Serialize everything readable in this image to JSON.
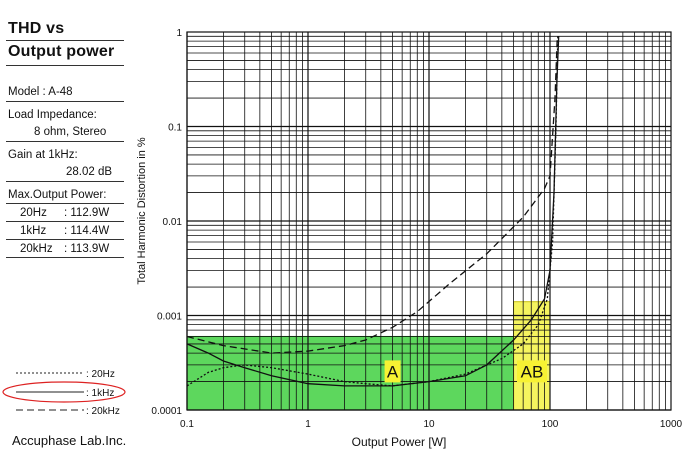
{
  "sidebar": {
    "title_line1": "THD vs",
    "title_line2": "Output power",
    "model": "Model    : A-48",
    "load_label": "Load Impedance:",
    "load_value": "8 ohm, Stereo",
    "gain_label": "Gain at 1kHz:",
    "gain_value": "28.02 dB",
    "maxpower_label": "Max.Output Power:",
    "power_rows": [
      {
        "freq": "20Hz",
        "value": ":  112.9W"
      },
      {
        "freq": "1kHz",
        "value": ":  114.4W"
      },
      {
        "freq": "20kHz",
        "value": ":  113.9W"
      }
    ],
    "brand": "Accuphase Lab.Inc."
  },
  "legend": [
    {
      "label": ": 20Hz",
      "style": "dotted"
    },
    {
      "label": ": 1kHz",
      "style": "solid",
      "highlighted": true
    },
    {
      "label": ": 20kHz",
      "style": "dashed"
    }
  ],
  "chart_data": {
    "type": "line",
    "xlabel": "Output Power [W]",
    "ylabel": "Total Harmonic Distortion in %",
    "xscale": "log",
    "yscale": "log",
    "xlim": [
      0.1,
      1000
    ],
    "ylim": [
      0.0001,
      1
    ],
    "x_ticks": [
      "0.1",
      "1",
      "10",
      "100",
      "1000"
    ],
    "y_ticks": [
      "1",
      "0.1",
      "0.01",
      "0.001",
      "0.0001"
    ],
    "grid": true,
    "series": [
      {
        "name": "20Hz",
        "style": "dotted",
        "points": [
          [
            0.1,
            0.00018
          ],
          [
            0.15,
            0.00025
          ],
          [
            0.2,
            0.00028
          ],
          [
            0.3,
            0.0003
          ],
          [
            0.5,
            0.00028
          ],
          [
            1,
            0.00024
          ],
          [
            2,
            0.0002
          ],
          [
            3,
            0.00019
          ],
          [
            5,
            0.00018
          ],
          [
            10,
            0.0002
          ],
          [
            20,
            0.00024
          ],
          [
            40,
            0.00035
          ],
          [
            60,
            0.0005
          ],
          [
            80,
            0.0008
          ],
          [
            95,
            0.0015
          ],
          [
            105,
            0.006
          ],
          [
            112,
            0.1
          ],
          [
            116,
            0.9
          ]
        ]
      },
      {
        "name": "1kHz",
        "style": "solid",
        "points": [
          [
            0.1,
            0.0005
          ],
          [
            0.15,
            0.0004
          ],
          [
            0.2,
            0.00033
          ],
          [
            0.3,
            0.00028
          ],
          [
            0.5,
            0.00023
          ],
          [
            1,
            0.00019
          ],
          [
            2,
            0.00018
          ],
          [
            5,
            0.00018
          ],
          [
            10,
            0.0002
          ],
          [
            20,
            0.00023
          ],
          [
            30,
            0.0003
          ],
          [
            50,
            0.00055
          ],
          [
            70,
            0.0009
          ],
          [
            90,
            0.0015
          ],
          [
            100,
            0.003
          ],
          [
            108,
            0.02
          ],
          [
            114,
            0.3
          ],
          [
            118,
            0.9
          ]
        ]
      },
      {
        "name": "20kHz",
        "style": "dashed",
        "points": [
          [
            0.1,
            0.0006
          ],
          [
            0.2,
            0.00048
          ],
          [
            0.5,
            0.0004
          ],
          [
            1,
            0.00042
          ],
          [
            2,
            0.00048
          ],
          [
            3,
            0.00055
          ],
          [
            5,
            0.00075
          ],
          [
            8,
            0.0011
          ],
          [
            15,
            0.0022
          ],
          [
            30,
            0.0045
          ],
          [
            60,
            0.011
          ],
          [
            90,
            0.022
          ],
          [
            100,
            0.03
          ],
          [
            110,
            0.2
          ],
          [
            115,
            0.9
          ]
        ]
      }
    ],
    "regions": [
      {
        "label": "A",
        "x": [
          0.1,
          50
        ],
        "y": [
          0.0001,
          0.0006
        ],
        "color": "#27c927"
      },
      {
        "label": "AB",
        "x": [
          50,
          100
        ],
        "y": [
          0.0001,
          0.0014
        ],
        "color": "#f2f02a"
      }
    ]
  }
}
